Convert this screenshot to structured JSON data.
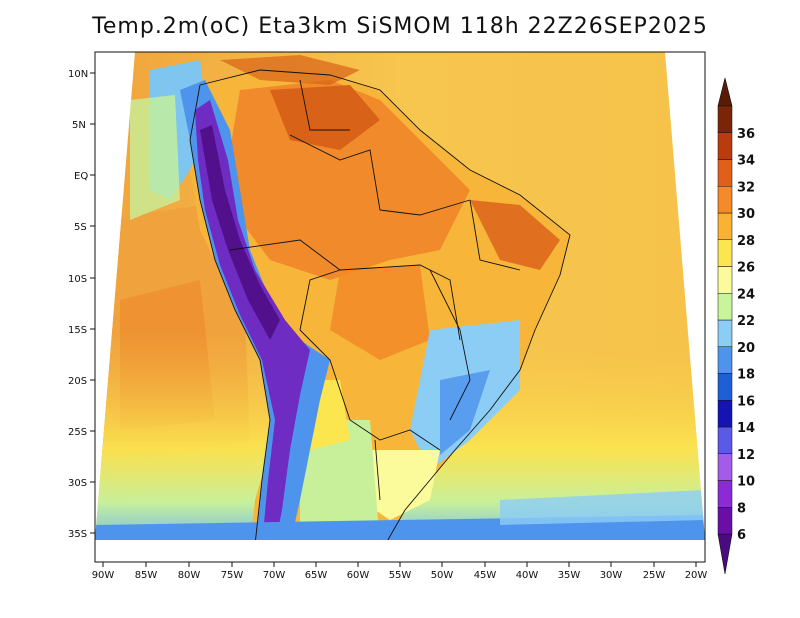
{
  "title": "Temp.2m(oC) Eta3km SiSMOM 118h 22Z26SEP2025",
  "lat_labels": [
    "10N",
    "5N",
    "EQ",
    "5S",
    "10S",
    "15S",
    "20S",
    "25S",
    "30S",
    "35S"
  ],
  "lon_labels": [
    "90W",
    "85W",
    "80W",
    "75W",
    "70W",
    "65W",
    "60W",
    "55W",
    "50W",
    "45W",
    "40W",
    "35W",
    "30W",
    "25W",
    "20W"
  ],
  "colorbar": {
    "labels": [
      "6",
      "8",
      "10",
      "12",
      "14",
      "16",
      "18",
      "20",
      "22",
      "24",
      "26",
      "28",
      "30",
      "32",
      "34",
      "36"
    ],
    "colors": [
      "#6a0fa6",
      "#8a2bd6",
      "#a45ce8",
      "#5a5ae6",
      "#1414b4",
      "#1f5fd6",
      "#4f94ec",
      "#8ccdf6",
      "#c8f59a",
      "#fbfb9c",
      "#fbe650",
      "#f9b232",
      "#f58b28",
      "#e0601a",
      "#b83c0e",
      "#7a2408"
    ],
    "under_color": "#4b0a80",
    "over_color": "#5a1a06"
  },
  "field_colors": {
    "ocean_north": "#f7c855",
    "ocean_west": "#f0a23c",
    "ocean_south": "#c8f09a",
    "amazon": "#f08a2a",
    "hot": "#d86218",
    "andes_cold": "#6f2cc2",
    "andes_mid": "#4f94ec",
    "southeast_cool": "#8ccdf6",
    "south": "#fbfb9c"
  }
}
